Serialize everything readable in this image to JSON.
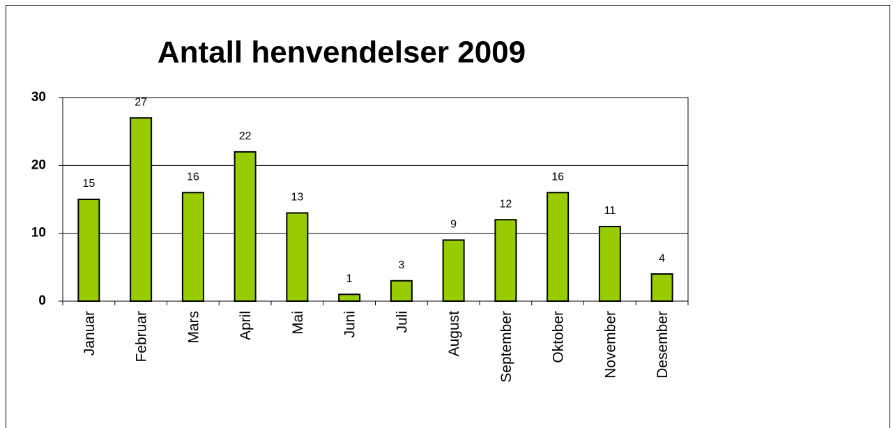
{
  "chart_data": {
    "type": "bar",
    "title": "Antall henvendelser 2009",
    "categories": [
      "Januar",
      "Februar",
      "Mars",
      "April",
      "Mai",
      "Juni",
      "Juli",
      "August",
      "September",
      "Oktober",
      "November",
      "Desember"
    ],
    "values": [
      15,
      27,
      16,
      22,
      13,
      1,
      3,
      9,
      12,
      16,
      11,
      4
    ],
    "color": "#99cc00",
    "ylim": [
      0,
      30
    ],
    "yticks": [
      0,
      10,
      20,
      30
    ],
    "grid": true
  }
}
